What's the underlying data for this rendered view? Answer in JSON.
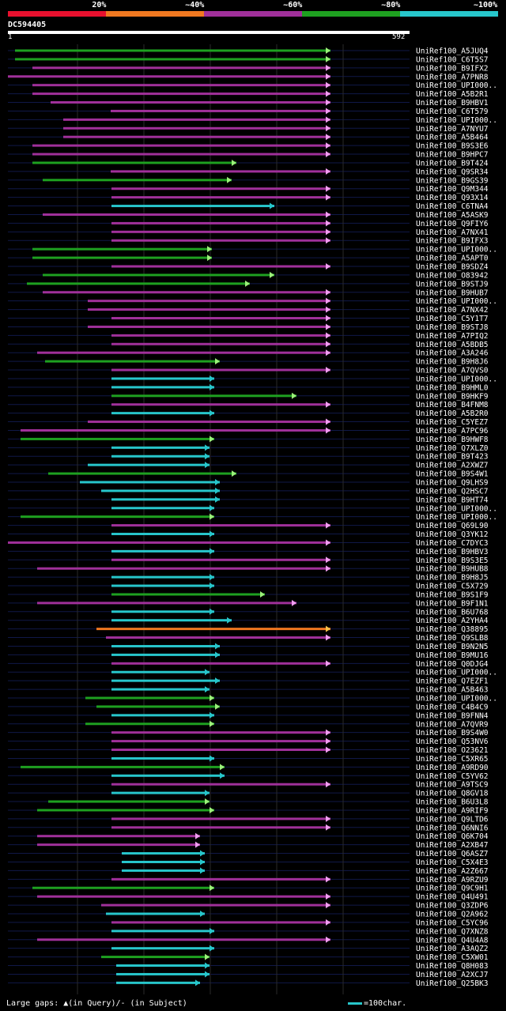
{
  "chart_data": {
    "type": "alignment-overview",
    "title": "DC594405",
    "query_start": "1",
    "query_end": "592",
    "query_length": 592,
    "identity_legend": [
      {
        "label": "20%",
        "color": "#e8102e"
      },
      {
        "label": "~40%",
        "color": "#f07820"
      },
      {
        "label": "~60%",
        "color": "#a0309a"
      },
      {
        "label": "~80%",
        "color": "#1ea020"
      },
      {
        "label": "~100%",
        "color": "#27c6cb"
      }
    ],
    "gridlines": [
      0,
      131,
      250,
      369,
      488
    ],
    "footer_gaps": "Large gaps: ▲(in Query)/- (in Subject)",
    "footer_scale": "=100char.",
    "hits": [
      {
        "name": "UniRef100_A5JUQ4",
        "s": 9,
        "e": 605,
        "c": "g"
      },
      {
        "name": "UniRef100_C6T5S7",
        "s": 9,
        "e": 605,
        "c": "g"
      },
      {
        "name": "UniRef100_B9IFX2",
        "s": 31,
        "e": 598,
        "c": "m"
      },
      {
        "name": "UniRef100_A7PNR8",
        "s": 0,
        "e": 605,
        "c": "m"
      },
      {
        "name": "UniRef100_UPI000..",
        "s": 31,
        "e": 605,
        "c": "m"
      },
      {
        "name": "UniRef100_A5B2R1",
        "s": 31,
        "e": 605,
        "c": "m"
      },
      {
        "name": "UniRef100_B9HBV1",
        "s": 54,
        "e": 589,
        "c": "m"
      },
      {
        "name": "UniRef100_C6T579",
        "s": 130,
        "e": 605,
        "c": "m"
      },
      {
        "name": "UniRef100_UPI000..",
        "s": 70,
        "e": 605,
        "c": "m"
      },
      {
        "name": "UniRef100_A7NYU7",
        "s": 70,
        "e": 605,
        "c": "m"
      },
      {
        "name": "UniRef100_A5B464",
        "s": 70,
        "e": 605,
        "c": "m"
      },
      {
        "name": "UniRef100_B9S3E6",
        "s": 31,
        "e": 423,
        "c": "m"
      },
      {
        "name": "UniRef100_B9HPC7",
        "s": 31,
        "e": 562,
        "c": "m"
      },
      {
        "name": "UniRef100_B9T424",
        "s": 31,
        "e": 293,
        "c": "g"
      },
      {
        "name": "UniRef100_Q9SR34",
        "s": 130,
        "e": 546,
        "c": "m"
      },
      {
        "name": "UniRef100_B9GS39",
        "s": 44,
        "e": 287,
        "c": "g"
      },
      {
        "name": "UniRef100_Q9M344",
        "s": 131,
        "e": 558,
        "c": "m"
      },
      {
        "name": "UniRef100_Q93X14",
        "s": 131,
        "e": 589,
        "c": "m"
      },
      {
        "name": "UniRef100_C6TNA4",
        "s": 131,
        "e": 341,
        "c": "c"
      },
      {
        "name": "UniRef100_A5ASK9",
        "s": 44,
        "e": 558,
        "c": "m"
      },
      {
        "name": "UniRef100_Q9FIY6",
        "s": 131,
        "e": 551,
        "c": "m"
      },
      {
        "name": "UniRef100_A7NX41",
        "s": 131,
        "e": 551,
        "c": "m"
      },
      {
        "name": "UniRef100_B9IFX3",
        "s": 131,
        "e": 516,
        "c": "m"
      },
      {
        "name": "UniRef100_UPI000..",
        "s": 31,
        "e": 262,
        "c": "g"
      },
      {
        "name": "UniRef100_A5APT0",
        "s": 31,
        "e": 262,
        "c": "g"
      },
      {
        "name": "UniRef100_B9SDZ4",
        "s": 131,
        "e": 516,
        "c": "m"
      },
      {
        "name": "UniRef100_O83942",
        "s": 44,
        "e": 341,
        "c": "g"
      },
      {
        "name": "UniRef100_B9STJ9",
        "s": 24,
        "e": 310,
        "c": "g"
      },
      {
        "name": "UniRef100_B9HUB7",
        "s": 44,
        "e": 465,
        "c": "m"
      },
      {
        "name": "UniRef100_UPI000..",
        "s": 101,
        "e": 551,
        "c": "m"
      },
      {
        "name": "UniRef100_A7NX42",
        "s": 101,
        "e": 551,
        "c": "m"
      },
      {
        "name": "UniRef100_C5Y1T7",
        "s": 131,
        "e": 465,
        "c": "m"
      },
      {
        "name": "UniRef100_B9STJ8",
        "s": 101,
        "e": 573,
        "c": "m"
      },
      {
        "name": "UniRef100_A7PIQ2",
        "s": 131,
        "e": 474,
        "c": "m"
      },
      {
        "name": "UniRef100_A5BDB5",
        "s": 131,
        "e": 474,
        "c": "m"
      },
      {
        "name": "UniRef100_A3A246",
        "s": 37,
        "e": 551,
        "c": "m"
      },
      {
        "name": "UniRef100_B9H8J6",
        "s": 47,
        "e": 272,
        "c": "g"
      },
      {
        "name": "UniRef100_A7QVS0",
        "s": 131,
        "e": 558,
        "c": "m"
      },
      {
        "name": "UniRef100_UPI000..",
        "s": 131,
        "e": 265,
        "c": "c"
      },
      {
        "name": "UniRef100_B9HML0",
        "s": 131,
        "e": 265,
        "c": "c"
      },
      {
        "name": "UniRef100_B9HKF9",
        "s": 131,
        "e": 369,
        "c": "g"
      },
      {
        "name": "UniRef100_B4FNM8",
        "s": 131,
        "e": 449,
        "c": "m"
      },
      {
        "name": "UniRef100_A5B2R0",
        "s": 131,
        "e": 265,
        "c": "c"
      },
      {
        "name": "UniRef100_C5YEZ7",
        "s": 101,
        "e": 551,
        "c": "m"
      },
      {
        "name": "UniRef100_A7PC96",
        "s": 16,
        "e": 558,
        "c": "m"
      },
      {
        "name": "UniRef100_B9HWF8",
        "s": 16,
        "e": 265,
        "c": "g"
      },
      {
        "name": "UniRef100_Q7XLZ0",
        "s": 131,
        "e": 259,
        "c": "c"
      },
      {
        "name": "UniRef100_B9T423",
        "s": 131,
        "e": 259,
        "c": "c"
      },
      {
        "name": "UniRef100_A2XWZ7",
        "s": 101,
        "e": 259,
        "c": "c"
      },
      {
        "name": "UniRef100_B9S4W1",
        "s": 51,
        "e": 293,
        "c": "g"
      },
      {
        "name": "UniRef100_Q9LHS9",
        "s": 91,
        "e": 272,
        "c": "c"
      },
      {
        "name": "UniRef100_Q2HSC7",
        "s": 118,
        "e": 272,
        "c": "c"
      },
      {
        "name": "UniRef100_B9HT74",
        "s": 131,
        "e": 272,
        "c": "c"
      },
      {
        "name": "UniRef100_UPI000..",
        "s": 131,
        "e": 265,
        "c": "c"
      },
      {
        "name": "UniRef100_UPI000..",
        "s": 16,
        "e": 265,
        "c": "g"
      },
      {
        "name": "UniRef100_Q69L90",
        "s": 131,
        "e": 509,
        "c": "m"
      },
      {
        "name": "UniRef100_Q3YK12",
        "s": 131,
        "e": 265,
        "c": "c"
      },
      {
        "name": "UniRef100_C7DYC3",
        "s": 0,
        "e": 423,
        "c": "m"
      },
      {
        "name": "UniRef100_B9HBV3",
        "s": 131,
        "e": 265,
        "c": "c"
      },
      {
        "name": "UniRef100_B9S3E5",
        "s": 131,
        "e": 551,
        "c": "m"
      },
      {
        "name": "UniRef100_B9HUB8",
        "s": 37,
        "e": 551,
        "c": "m"
      },
      {
        "name": "UniRef100_B9H8J5",
        "s": 131,
        "e": 265,
        "c": "c"
      },
      {
        "name": "UniRef100_C5X729",
        "s": 131,
        "e": 265,
        "c": "c"
      },
      {
        "name": "UniRef100_B9S1F9",
        "s": 131,
        "e": 329,
        "c": "g"
      },
      {
        "name": "UniRef100_B9F1N1",
        "s": 37,
        "e": 369,
        "c": "m"
      },
      {
        "name": "UniRef100_B6U768",
        "s": 131,
        "e": 265,
        "c": "c"
      },
      {
        "name": "UniRef100_A2YHA4",
        "s": 131,
        "e": 287,
        "c": "c"
      },
      {
        "name": "UniRef100_Q38895",
        "s": 112,
        "e": 551,
        "c": "o"
      },
      {
        "name": "UniRef100_Q9SLB8",
        "s": 124,
        "e": 516,
        "c": "m"
      },
      {
        "name": "UniRef100_B9N2N5",
        "s": 131,
        "e": 272,
        "c": "c"
      },
      {
        "name": "UniRef100_B9MU16",
        "s": 131,
        "e": 272,
        "c": "c"
      },
      {
        "name": "UniRef100_Q0DJG4",
        "s": 131,
        "e": 598,
        "c": "m"
      },
      {
        "name": "UniRef100_UPI000..",
        "s": 131,
        "e": 259,
        "c": "c"
      },
      {
        "name": "UniRef100_Q7EZF1",
        "s": 131,
        "e": 272,
        "c": "c"
      },
      {
        "name": "UniRef100_A5B463",
        "s": 131,
        "e": 259,
        "c": "c"
      },
      {
        "name": "UniRef100_UPI000..",
        "s": 98,
        "e": 265,
        "c": "g"
      },
      {
        "name": "UniRef100_C4B4C9",
        "s": 112,
        "e": 272,
        "c": "g"
      },
      {
        "name": "UniRef100_B9FNN4",
        "s": 131,
        "e": 265,
        "c": "c"
      },
      {
        "name": "UniRef100_A7QVR9",
        "s": 98,
        "e": 265,
        "c": "g"
      },
      {
        "name": "UniRef100_B9S4W0",
        "s": 131,
        "e": 465,
        "c": "m"
      },
      {
        "name": "UniRef100_Q53NV6",
        "s": 131,
        "e": 504,
        "c": "m"
      },
      {
        "name": "UniRef100_O23621",
        "s": 131,
        "e": 558,
        "c": "m"
      },
      {
        "name": "UniRef100_C5XR65",
        "s": 131,
        "e": 265,
        "c": "c"
      },
      {
        "name": "UniRef100_A9RD90",
        "s": 16,
        "e": 278,
        "c": "g"
      },
      {
        "name": "UniRef100_C5YV62",
        "s": 131,
        "e": 278,
        "c": "c"
      },
      {
        "name": "UniRef100_A9TSC9",
        "s": 131,
        "e": 551,
        "c": "m"
      },
      {
        "name": "UniRef100_Q8GV18",
        "s": 131,
        "e": 259,
        "c": "c"
      },
      {
        "name": "UniRef100_B6U3L8",
        "s": 51,
        "e": 259,
        "c": "g"
      },
      {
        "name": "UniRef100_A9RIF9",
        "s": 37,
        "e": 265,
        "c": "g"
      },
      {
        "name": "UniRef100_Q9LTD6",
        "s": 131,
        "e": 546,
        "c": "m"
      },
      {
        "name": "UniRef100_Q6NNI6",
        "s": 131,
        "e": 551,
        "c": "m"
      },
      {
        "name": "UniRef100_Q6K704",
        "s": 37,
        "e": 247,
        "c": "m"
      },
      {
        "name": "UniRef100_A2XB47",
        "s": 37,
        "e": 247,
        "c": "m"
      },
      {
        "name": "UniRef100_Q6ASZ7",
        "s": 144,
        "e": 253,
        "c": "c"
      },
      {
        "name": "UniRef100_C5X4E3",
        "s": 144,
        "e": 253,
        "c": "c"
      },
      {
        "name": "UniRef100_A2Z667",
        "s": 144,
        "e": 253,
        "c": "c"
      },
      {
        "name": "UniRef100_A9RZU9",
        "s": 131,
        "e": 546,
        "c": "m"
      },
      {
        "name": "UniRef100_Q9C9H1",
        "s": 31,
        "e": 265,
        "c": "g"
      },
      {
        "name": "UniRef100_Q4U491",
        "s": 37,
        "e": 551,
        "c": "m"
      },
      {
        "name": "UniRef100_Q3ZDP6",
        "s": 118,
        "e": 551,
        "c": "m"
      },
      {
        "name": "UniRef100_Q2A962",
        "s": 124,
        "e": 253,
        "c": "c"
      },
      {
        "name": "UniRef100_C5YC96",
        "s": 131,
        "e": 546,
        "c": "m"
      },
      {
        "name": "UniRef100_Q7XNZ8",
        "s": 131,
        "e": 265,
        "c": "c"
      },
      {
        "name": "UniRef100_Q4U4A8",
        "s": 37,
        "e": 551,
        "c": "m"
      },
      {
        "name": "UniRef100_A3AQZ2",
        "s": 131,
        "e": 265,
        "c": "c"
      },
      {
        "name": "UniRef100_C5XW01",
        "s": 118,
        "e": 259,
        "c": "g"
      },
      {
        "name": "UniRef100_Q8H083",
        "s": 137,
        "e": 259,
        "c": "c"
      },
      {
        "name": "UniRef100_A2XCJ7",
        "s": 137,
        "e": 259,
        "c": "c"
      },
      {
        "name": "UniRef100_Q25BK3",
        "s": 137,
        "e": 247,
        "c": "c"
      }
    ]
  }
}
